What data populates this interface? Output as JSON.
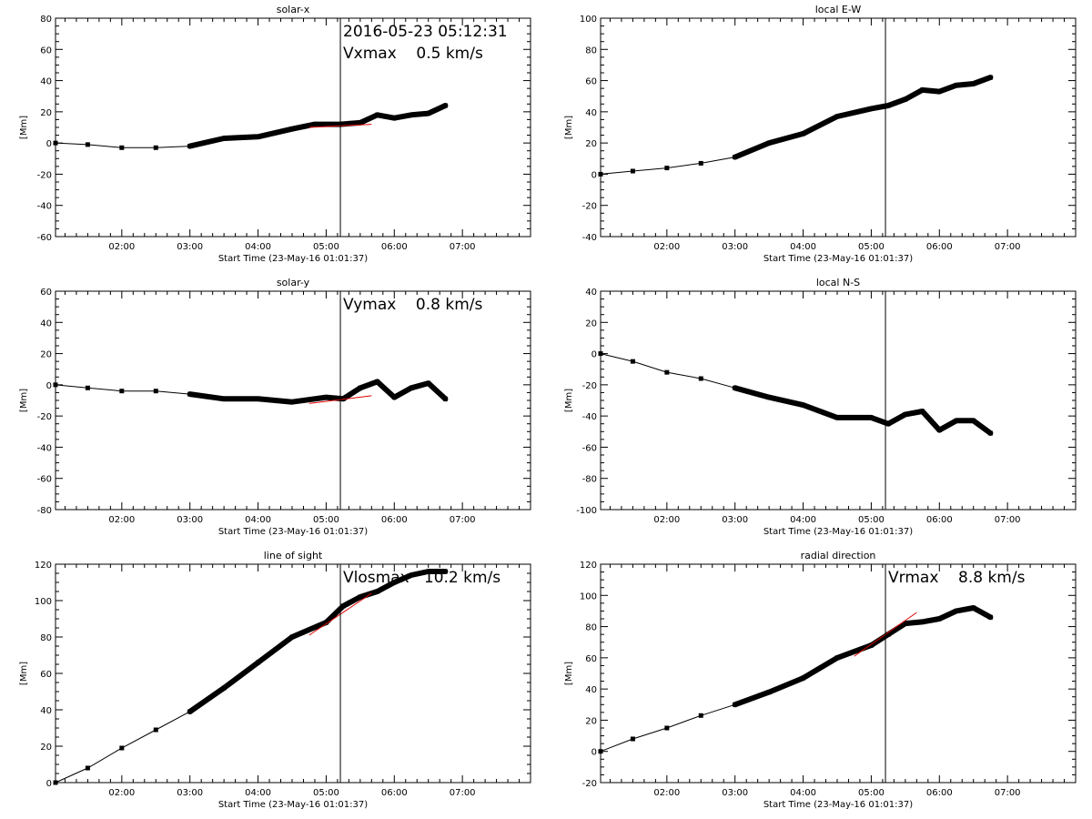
{
  "chart_data": [
    {
      "type": "line",
      "title": "solar-x",
      "xlabel": "Start Time (23-May-16 01:01:37)",
      "ylabel": "[Mm]",
      "xlim": [
        "01:01:37",
        "08:00"
      ],
      "ylim": [
        -60,
        80
      ],
      "yticks": [
        -60,
        -40,
        -20,
        0,
        20,
        40,
        60,
        80
      ],
      "xticks": [
        "02:00",
        "03:00",
        "04:00",
        "05:00",
        "06:00",
        "07:00"
      ],
      "grid": false,
      "annotations": [
        "2016-05-23 05:12:31",
        "Vxmax    0.5 km/s"
      ],
      "vline": "05:12:31",
      "series": [
        {
          "values": [
            {
              "x": "01:01:37",
              "y": 0
            },
            {
              "x": "01:30",
              "y": -1
            },
            {
              "x": "02:00",
              "y": -3
            },
            {
              "x": "02:30",
              "y": -3
            },
            {
              "x": "03:00",
              "y": -2
            },
            {
              "x": "03:30",
              "y": 3
            },
            {
              "x": "04:00",
              "y": 4
            },
            {
              "x": "04:30",
              "y": 9
            },
            {
              "x": "04:50",
              "y": 12
            },
            {
              "x": "05:12",
              "y": 12
            },
            {
              "x": "05:30",
              "y": 13
            },
            {
              "x": "05:45",
              "y": 18
            },
            {
              "x": "06:00",
              "y": 16
            },
            {
              "x": "06:15",
              "y": 18
            },
            {
              "x": "06:30",
              "y": 19
            },
            {
              "x": "06:45",
              "y": 24
            }
          ]
        }
      ],
      "fit_line": [
        {
          "x": "04:45",
          "y": 10
        },
        {
          "x": "05:40",
          "y": 12
        }
      ]
    },
    {
      "type": "line",
      "title": "local E-W",
      "xlabel": "Start Time (23-May-16 01:01:37)",
      "ylabel": "[Mm]",
      "xlim": [
        "01:01:37",
        "08:00"
      ],
      "ylim": [
        -40,
        100
      ],
      "yticks": [
        -40,
        -20,
        0,
        20,
        40,
        60,
        80,
        100
      ],
      "xticks": [
        "02:00",
        "03:00",
        "04:00",
        "05:00",
        "06:00",
        "07:00"
      ],
      "grid": false,
      "annotations": [],
      "vline": "05:12:31",
      "series": [
        {
          "values": [
            {
              "x": "01:01:37",
              "y": 0
            },
            {
              "x": "01:30",
              "y": 2
            },
            {
              "x": "02:00",
              "y": 4
            },
            {
              "x": "02:30",
              "y": 7
            },
            {
              "x": "03:00",
              "y": 11
            },
            {
              "x": "03:30",
              "y": 20
            },
            {
              "x": "04:00",
              "y": 26
            },
            {
              "x": "04:30",
              "y": 37
            },
            {
              "x": "05:00",
              "y": 42
            },
            {
              "x": "05:15",
              "y": 44
            },
            {
              "x": "05:30",
              "y": 48
            },
            {
              "x": "05:45",
              "y": 54
            },
            {
              "x": "06:00",
              "y": 53
            },
            {
              "x": "06:15",
              "y": 57
            },
            {
              "x": "06:30",
              "y": 58
            },
            {
              "x": "06:45",
              "y": 62
            }
          ]
        }
      ]
    },
    {
      "type": "line",
      "title": "solar-y",
      "xlabel": "Start Time (23-May-16 01:01:37)",
      "ylabel": "[Mm]",
      "xlim": [
        "01:01:37",
        "08:00"
      ],
      "ylim": [
        -80,
        60
      ],
      "yticks": [
        -80,
        -60,
        -40,
        -20,
        0,
        20,
        40,
        60
      ],
      "xticks": [
        "02:00",
        "03:00",
        "04:00",
        "05:00",
        "06:00",
        "07:00"
      ],
      "grid": false,
      "annotations": [
        "Vymax    0.8 km/s"
      ],
      "vline": "05:12:31",
      "series": [
        {
          "values": [
            {
              "x": "01:01:37",
              "y": 0
            },
            {
              "x": "01:30",
              "y": -2
            },
            {
              "x": "02:00",
              "y": -4
            },
            {
              "x": "02:30",
              "y": -4
            },
            {
              "x": "03:00",
              "y": -6
            },
            {
              "x": "03:30",
              "y": -9
            },
            {
              "x": "04:00",
              "y": -9
            },
            {
              "x": "04:30",
              "y": -11
            },
            {
              "x": "05:00",
              "y": -8
            },
            {
              "x": "05:15",
              "y": -9
            },
            {
              "x": "05:30",
              "y": -2
            },
            {
              "x": "05:45",
              "y": 2
            },
            {
              "x": "06:00",
              "y": -8
            },
            {
              "x": "06:15",
              "y": -2
            },
            {
              "x": "06:30",
              "y": 1
            },
            {
              "x": "06:45",
              "y": -9
            }
          ]
        }
      ],
      "fit_line": [
        {
          "x": "04:45",
          "y": -12
        },
        {
          "x": "05:40",
          "y": -7
        }
      ]
    },
    {
      "type": "line",
      "title": "local N-S",
      "xlabel": "Start Time (23-May-16 01:01:37)",
      "ylabel": "[Mm]",
      "xlim": [
        "01:01:37",
        "08:00"
      ],
      "ylim": [
        -100,
        40
      ],
      "yticks": [
        -100,
        -80,
        -60,
        -40,
        -20,
        0,
        20,
        40
      ],
      "xticks": [
        "02:00",
        "03:00",
        "04:00",
        "05:00",
        "06:00",
        "07:00"
      ],
      "grid": false,
      "annotations": [],
      "vline": "05:12:31",
      "series": [
        {
          "values": [
            {
              "x": "01:01:37",
              "y": 0
            },
            {
              "x": "01:30",
              "y": -5
            },
            {
              "x": "02:00",
              "y": -12
            },
            {
              "x": "02:30",
              "y": -16
            },
            {
              "x": "03:00",
              "y": -22
            },
            {
              "x": "03:30",
              "y": -28
            },
            {
              "x": "04:00",
              "y": -33
            },
            {
              "x": "04:30",
              "y": -41
            },
            {
              "x": "05:00",
              "y": -41
            },
            {
              "x": "05:15",
              "y": -45
            },
            {
              "x": "05:30",
              "y": -39
            },
            {
              "x": "05:45",
              "y": -37
            },
            {
              "x": "06:00",
              "y": -49
            },
            {
              "x": "06:15",
              "y": -43
            },
            {
              "x": "06:30",
              "y": -43
            },
            {
              "x": "06:45",
              "y": -51
            }
          ]
        }
      ]
    },
    {
      "type": "line",
      "title": "line of sight",
      "xlabel": "Start Time (23-May-16 01:01:37)",
      "ylabel": "[Mm]",
      "xlim": [
        "01:01:37",
        "08:00"
      ],
      "ylim": [
        0,
        120
      ],
      "yticks": [
        0,
        20,
        40,
        60,
        80,
        100,
        120
      ],
      "xticks": [
        "02:00",
        "03:00",
        "04:00",
        "05:00",
        "06:00",
        "07:00"
      ],
      "grid": false,
      "annotations": [
        "Vlosmax   10.2 km/s"
      ],
      "vline": "05:12:31",
      "series": [
        {
          "values": [
            {
              "x": "01:01:37",
              "y": 0
            },
            {
              "x": "01:30",
              "y": 8
            },
            {
              "x": "02:00",
              "y": 19
            },
            {
              "x": "02:30",
              "y": 29
            },
            {
              "x": "03:00",
              "y": 39
            },
            {
              "x": "03:30",
              "y": 52
            },
            {
              "x": "04:00",
              "y": 66
            },
            {
              "x": "04:30",
              "y": 80
            },
            {
              "x": "05:00",
              "y": 88
            },
            {
              "x": "05:15",
              "y": 97
            },
            {
              "x": "05:30",
              "y": 102
            },
            {
              "x": "05:45",
              "y": 105
            },
            {
              "x": "06:00",
              "y": 110
            },
            {
              "x": "06:15",
              "y": 114
            },
            {
              "x": "06:30",
              "y": 116
            },
            {
              "x": "06:45",
              "y": 116
            }
          ]
        }
      ],
      "fit_line": [
        {
          "x": "04:45",
          "y": 81
        },
        {
          "x": "05:40",
          "y": 104
        }
      ]
    },
    {
      "type": "line",
      "title": "radial direction",
      "xlabel": "Start Time (23-May-16 01:01:37)",
      "ylabel": "[Mm]",
      "xlim": [
        "01:01:37",
        "08:00"
      ],
      "ylim": [
        -20,
        120
      ],
      "yticks": [
        -20,
        0,
        20,
        40,
        60,
        80,
        100,
        120
      ],
      "xticks": [
        "02:00",
        "03:00",
        "04:00",
        "05:00",
        "06:00",
        "07:00"
      ],
      "grid": false,
      "annotations": [
        "Vrmax    8.8 km/s"
      ],
      "vline": "05:12:31",
      "series": [
        {
          "values": [
            {
              "x": "01:01:37",
              "y": 0
            },
            {
              "x": "01:30",
              "y": 8
            },
            {
              "x": "02:00",
              "y": 15
            },
            {
              "x": "02:30",
              "y": 23
            },
            {
              "x": "03:00",
              "y": 30
            },
            {
              "x": "03:30",
              "y": 38
            },
            {
              "x": "04:00",
              "y": 47
            },
            {
              "x": "04:30",
              "y": 60
            },
            {
              "x": "05:00",
              "y": 68
            },
            {
              "x": "05:15",
              "y": 75
            },
            {
              "x": "05:30",
              "y": 82
            },
            {
              "x": "05:45",
              "y": 83
            },
            {
              "x": "06:00",
              "y": 85
            },
            {
              "x": "06:15",
              "y": 90
            },
            {
              "x": "06:30",
              "y": 92
            },
            {
              "x": "06:45",
              "y": 86
            }
          ]
        }
      ],
      "fit_line": [
        {
          "x": "04:45",
          "y": 61
        },
        {
          "x": "05:40",
          "y": 89
        }
      ]
    }
  ]
}
